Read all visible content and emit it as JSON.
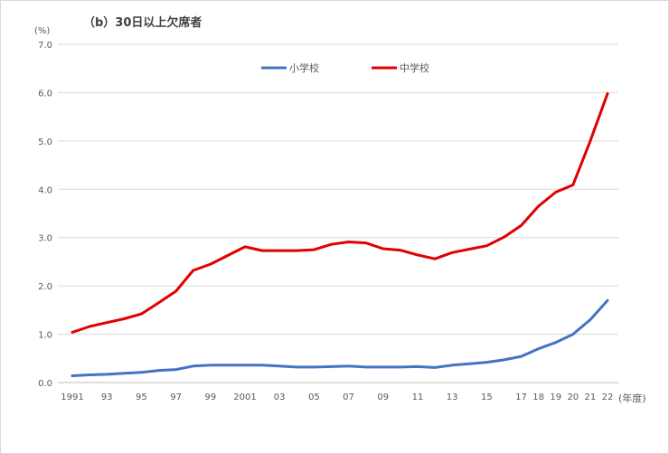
{
  "chart_data": {
    "type": "line",
    "title": "（b）30日以上欠席者",
    "ylabel": "(%)",
    "xlabel": "(年度)",
    "ylim": [
      0,
      7
    ],
    "yticks": [
      "0.0",
      "1.0",
      "2.0",
      "3.0",
      "4.0",
      "5.0",
      "6.0",
      "7.0"
    ],
    "grid": true,
    "legend_position": "top-center",
    "x": [
      1991,
      1992,
      1993,
      1994,
      1995,
      1996,
      1997,
      1998,
      1999,
      2000,
      2001,
      2002,
      2003,
      2004,
      2005,
      2006,
      2007,
      2008,
      2009,
      2010,
      2011,
      2012,
      2013,
      2014,
      2015,
      2016,
      2017,
      2018,
      2019,
      2020,
      2021,
      2022
    ],
    "xtick_labels": [
      "1991",
      "",
      "93",
      "",
      "95",
      "",
      "97",
      "",
      "99",
      "",
      "2001",
      "",
      "03",
      "",
      "05",
      "",
      "07",
      "",
      "09",
      "",
      "11",
      "",
      "13",
      "",
      "15",
      "",
      "17",
      "18",
      "19",
      "20",
      "21",
      "22"
    ],
    "series": [
      {
        "name": "小学校",
        "color": "#4472c4",
        "values": [
          0.14,
          0.16,
          0.17,
          0.19,
          0.21,
          0.25,
          0.27,
          0.34,
          0.36,
          0.36,
          0.36,
          0.36,
          0.34,
          0.32,
          0.32,
          0.33,
          0.34,
          0.32,
          0.32,
          0.32,
          0.33,
          0.31,
          0.36,
          0.39,
          0.42,
          0.47,
          0.54,
          0.7,
          0.83,
          1.0,
          1.3,
          1.7
        ]
      },
      {
        "name": "中学校",
        "color": "#e00000",
        "values": [
          1.04,
          1.16,
          1.24,
          1.32,
          1.42,
          1.65,
          1.89,
          2.32,
          2.45,
          2.63,
          2.81,
          2.73,
          2.73,
          2.73,
          2.75,
          2.86,
          2.91,
          2.89,
          2.77,
          2.74,
          2.64,
          2.56,
          2.69,
          2.76,
          2.83,
          3.01,
          3.25,
          3.65,
          3.94,
          4.09,
          5.0,
          5.98
        ]
      }
    ]
  }
}
